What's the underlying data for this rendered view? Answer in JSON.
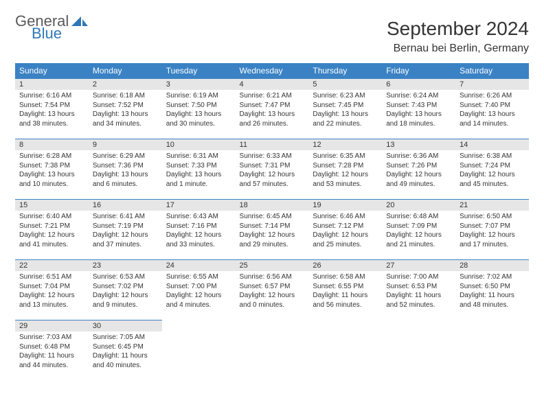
{
  "logo": {
    "word1": "General",
    "word2": "Blue",
    "icon_color": "#2e77b6",
    "text_gray": "#5a5a5a"
  },
  "title": "September 2024",
  "location": "Bernau bei Berlin, Germany",
  "header_bg": "#3a82c4",
  "header_fg": "#ffffff",
  "daynum_bg": "#e6e6e6",
  "border_color": "#3a82c4",
  "weekdays": [
    "Sunday",
    "Monday",
    "Tuesday",
    "Wednesday",
    "Thursday",
    "Friday",
    "Saturday"
  ],
  "days": [
    {
      "n": "1",
      "sunrise": "Sunrise: 6:16 AM",
      "sunset": "Sunset: 7:54 PM",
      "day": "Daylight: 13 hours and 38 minutes."
    },
    {
      "n": "2",
      "sunrise": "Sunrise: 6:18 AM",
      "sunset": "Sunset: 7:52 PM",
      "day": "Daylight: 13 hours and 34 minutes."
    },
    {
      "n": "3",
      "sunrise": "Sunrise: 6:19 AM",
      "sunset": "Sunset: 7:50 PM",
      "day": "Daylight: 13 hours and 30 minutes."
    },
    {
      "n": "4",
      "sunrise": "Sunrise: 6:21 AM",
      "sunset": "Sunset: 7:47 PM",
      "day": "Daylight: 13 hours and 26 minutes."
    },
    {
      "n": "5",
      "sunrise": "Sunrise: 6:23 AM",
      "sunset": "Sunset: 7:45 PM",
      "day": "Daylight: 13 hours and 22 minutes."
    },
    {
      "n": "6",
      "sunrise": "Sunrise: 6:24 AM",
      "sunset": "Sunset: 7:43 PM",
      "day": "Daylight: 13 hours and 18 minutes."
    },
    {
      "n": "7",
      "sunrise": "Sunrise: 6:26 AM",
      "sunset": "Sunset: 7:40 PM",
      "day": "Daylight: 13 hours and 14 minutes."
    },
    {
      "n": "8",
      "sunrise": "Sunrise: 6:28 AM",
      "sunset": "Sunset: 7:38 PM",
      "day": "Daylight: 13 hours and 10 minutes."
    },
    {
      "n": "9",
      "sunrise": "Sunrise: 6:29 AM",
      "sunset": "Sunset: 7:36 PM",
      "day": "Daylight: 13 hours and 6 minutes."
    },
    {
      "n": "10",
      "sunrise": "Sunrise: 6:31 AM",
      "sunset": "Sunset: 7:33 PM",
      "day": "Daylight: 13 hours and 1 minute."
    },
    {
      "n": "11",
      "sunrise": "Sunrise: 6:33 AM",
      "sunset": "Sunset: 7:31 PM",
      "day": "Daylight: 12 hours and 57 minutes."
    },
    {
      "n": "12",
      "sunrise": "Sunrise: 6:35 AM",
      "sunset": "Sunset: 7:28 PM",
      "day": "Daylight: 12 hours and 53 minutes."
    },
    {
      "n": "13",
      "sunrise": "Sunrise: 6:36 AM",
      "sunset": "Sunset: 7:26 PM",
      "day": "Daylight: 12 hours and 49 minutes."
    },
    {
      "n": "14",
      "sunrise": "Sunrise: 6:38 AM",
      "sunset": "Sunset: 7:24 PM",
      "day": "Daylight: 12 hours and 45 minutes."
    },
    {
      "n": "15",
      "sunrise": "Sunrise: 6:40 AM",
      "sunset": "Sunset: 7:21 PM",
      "day": "Daylight: 12 hours and 41 minutes."
    },
    {
      "n": "16",
      "sunrise": "Sunrise: 6:41 AM",
      "sunset": "Sunset: 7:19 PM",
      "day": "Daylight: 12 hours and 37 minutes."
    },
    {
      "n": "17",
      "sunrise": "Sunrise: 6:43 AM",
      "sunset": "Sunset: 7:16 PM",
      "day": "Daylight: 12 hours and 33 minutes."
    },
    {
      "n": "18",
      "sunrise": "Sunrise: 6:45 AM",
      "sunset": "Sunset: 7:14 PM",
      "day": "Daylight: 12 hours and 29 minutes."
    },
    {
      "n": "19",
      "sunrise": "Sunrise: 6:46 AM",
      "sunset": "Sunset: 7:12 PM",
      "day": "Daylight: 12 hours and 25 minutes."
    },
    {
      "n": "20",
      "sunrise": "Sunrise: 6:48 AM",
      "sunset": "Sunset: 7:09 PM",
      "day": "Daylight: 12 hours and 21 minutes."
    },
    {
      "n": "21",
      "sunrise": "Sunrise: 6:50 AM",
      "sunset": "Sunset: 7:07 PM",
      "day": "Daylight: 12 hours and 17 minutes."
    },
    {
      "n": "22",
      "sunrise": "Sunrise: 6:51 AM",
      "sunset": "Sunset: 7:04 PM",
      "day": "Daylight: 12 hours and 13 minutes."
    },
    {
      "n": "23",
      "sunrise": "Sunrise: 6:53 AM",
      "sunset": "Sunset: 7:02 PM",
      "day": "Daylight: 12 hours and 9 minutes."
    },
    {
      "n": "24",
      "sunrise": "Sunrise: 6:55 AM",
      "sunset": "Sunset: 7:00 PM",
      "day": "Daylight: 12 hours and 4 minutes."
    },
    {
      "n": "25",
      "sunrise": "Sunrise: 6:56 AM",
      "sunset": "Sunset: 6:57 PM",
      "day": "Daylight: 12 hours and 0 minutes."
    },
    {
      "n": "26",
      "sunrise": "Sunrise: 6:58 AM",
      "sunset": "Sunset: 6:55 PM",
      "day": "Daylight: 11 hours and 56 minutes."
    },
    {
      "n": "27",
      "sunrise": "Sunrise: 7:00 AM",
      "sunset": "Sunset: 6:53 PM",
      "day": "Daylight: 11 hours and 52 minutes."
    },
    {
      "n": "28",
      "sunrise": "Sunrise: 7:02 AM",
      "sunset": "Sunset: 6:50 PM",
      "day": "Daylight: 11 hours and 48 minutes."
    },
    {
      "n": "29",
      "sunrise": "Sunrise: 7:03 AM",
      "sunset": "Sunset: 6:48 PM",
      "day": "Daylight: 11 hours and 44 minutes."
    },
    {
      "n": "30",
      "sunrise": "Sunrise: 7:05 AM",
      "sunset": "Sunset: 6:45 PM",
      "day": "Daylight: 11 hours and 40 minutes."
    }
  ]
}
